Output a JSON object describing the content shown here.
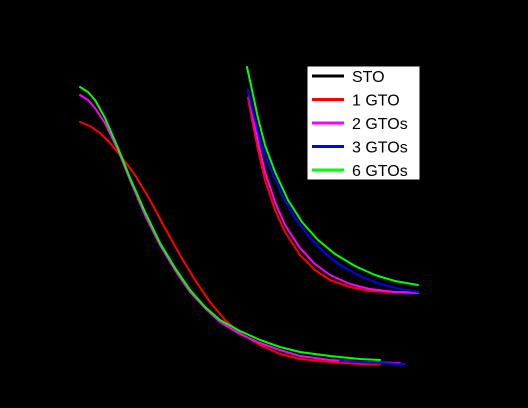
{
  "chart_data": {
    "type": "line",
    "title": "",
    "xlabel": "",
    "ylabel": "",
    "grid": false,
    "legend_position": "top-right",
    "background": "#000000",
    "series": [
      {
        "name": "STO",
        "color": "#000000",
        "panel": "left",
        "points": [
          [
            80,
            87
          ],
          [
            85,
            90
          ],
          [
            95,
            103
          ],
          [
            105,
            122
          ],
          [
            118,
            150
          ],
          [
            130,
            180
          ],
          [
            145,
            215
          ],
          [
            160,
            245
          ],
          [
            175,
            270
          ],
          [
            190,
            292
          ],
          [
            205,
            308
          ],
          [
            220,
            322
          ],
          [
            240,
            334
          ],
          [
            260,
            343
          ],
          [
            280,
            350
          ],
          [
            300,
            355
          ],
          [
            330,
            359
          ],
          [
            360,
            361
          ],
          [
            400,
            363
          ]
        ]
      },
      {
        "name": "1 GTO",
        "color": "#ff0000",
        "panel": "left",
        "points": [
          [
            80,
            122
          ],
          [
            90,
            126
          ],
          [
            100,
            133
          ],
          [
            110,
            143
          ],
          [
            120,
            155
          ],
          [
            135,
            175
          ],
          [
            150,
            200
          ],
          [
            165,
            228
          ],
          [
            180,
            255
          ],
          [
            195,
            280
          ],
          [
            210,
            302
          ],
          [
            225,
            320
          ],
          [
            240,
            333
          ],
          [
            260,
            345
          ],
          [
            280,
            354
          ],
          [
            300,
            359
          ],
          [
            330,
            362
          ],
          [
            360,
            364
          ],
          [
            380,
            364
          ]
        ]
      },
      {
        "name": "2 GTOs",
        "color": "#ff00ff",
        "panel": "left",
        "points": [
          [
            80,
            95
          ],
          [
            88,
            100
          ],
          [
            95,
            108
          ],
          [
            105,
            123
          ],
          [
            118,
            150
          ],
          [
            130,
            180
          ],
          [
            145,
            215
          ],
          [
            160,
            245
          ],
          [
            175,
            270
          ],
          [
            190,
            292
          ],
          [
            205,
            308
          ],
          [
            220,
            322
          ],
          [
            240,
            334
          ],
          [
            260,
            343
          ],
          [
            280,
            350
          ],
          [
            300,
            356
          ],
          [
            330,
            360
          ],
          [
            360,
            362
          ],
          [
            400,
            363
          ]
        ]
      },
      {
        "name": "3 GTOs",
        "color": "#0000ff",
        "panel": "left",
        "points": [
          [
            340,
            361
          ],
          [
            360,
            362
          ],
          [
            380,
            363
          ],
          [
            405,
            364
          ]
        ]
      },
      {
        "name": "6 GTOs",
        "color": "#00ff00",
        "panel": "left",
        "points": [
          [
            80,
            87
          ],
          [
            88,
            92
          ],
          [
            95,
            100
          ],
          [
            105,
            118
          ],
          [
            118,
            148
          ],
          [
            130,
            178
          ],
          [
            145,
            212
          ],
          [
            160,
            243
          ],
          [
            175,
            268
          ],
          [
            190,
            290
          ],
          [
            205,
            307
          ],
          [
            220,
            320
          ],
          [
            240,
            331
          ],
          [
            260,
            340
          ],
          [
            280,
            347
          ],
          [
            300,
            352
          ],
          [
            330,
            356
          ],
          [
            360,
            359
          ],
          [
            380,
            360
          ]
        ]
      },
      {
        "name": "1 GTO",
        "color": "#ff0000",
        "panel": "right",
        "points": [
          [
            248,
            98
          ],
          [
            252,
            120
          ],
          [
            258,
            150
          ],
          [
            265,
            180
          ],
          [
            275,
            210
          ],
          [
            285,
            232
          ],
          [
            300,
            255
          ],
          [
            315,
            270
          ],
          [
            330,
            280
          ],
          [
            350,
            287
          ],
          [
            370,
            291
          ],
          [
            395,
            292
          ],
          [
            418,
            292
          ]
        ]
      },
      {
        "name": "2 GTOs",
        "color": "#ff00ff",
        "panel": "right",
        "points": [
          [
            248,
            90
          ],
          [
            252,
            112
          ],
          [
            258,
            142
          ],
          [
            265,
            172
          ],
          [
            275,
            202
          ],
          [
            285,
            225
          ],
          [
            300,
            248
          ],
          [
            315,
            264
          ],
          [
            330,
            275
          ],
          [
            350,
            284
          ],
          [
            370,
            289
          ],
          [
            395,
            292
          ],
          [
            418,
            293
          ]
        ]
      },
      {
        "name": "3 GTOs",
        "color": "#0000ff",
        "panel": "right",
        "points": [
          [
            248,
            90
          ],
          [
            253,
            112
          ],
          [
            260,
            140
          ],
          [
            270,
            168
          ],
          [
            282,
            195
          ],
          [
            295,
            218
          ],
          [
            310,
            238
          ],
          [
            325,
            253
          ],
          [
            340,
            265
          ],
          [
            360,
            276
          ],
          [
            380,
            284
          ],
          [
            400,
            289
          ],
          [
            418,
            292
          ]
        ]
      },
      {
        "name": "6 GTOs",
        "color": "#00ff00",
        "panel": "right",
        "points": [
          [
            247,
            67
          ],
          [
            252,
            90
          ],
          [
            258,
            118
          ],
          [
            265,
            145
          ],
          [
            275,
            172
          ],
          [
            288,
            200
          ],
          [
            302,
            222
          ],
          [
            318,
            240
          ],
          [
            335,
            254
          ],
          [
            355,
            266
          ],
          [
            375,
            275
          ],
          [
            395,
            281
          ],
          [
            418,
            285
          ]
        ]
      }
    ],
    "legend": [
      {
        "label": "STO",
        "color": "#000000"
      },
      {
        "label": "1 GTO",
        "color": "#ff0000"
      },
      {
        "label": "2 GTOs",
        "color": "#ff00ff"
      },
      {
        "label": "3 GTOs",
        "color": "#0000ff"
      },
      {
        "label": "6 GTOs",
        "color": "#00ff00"
      }
    ]
  }
}
